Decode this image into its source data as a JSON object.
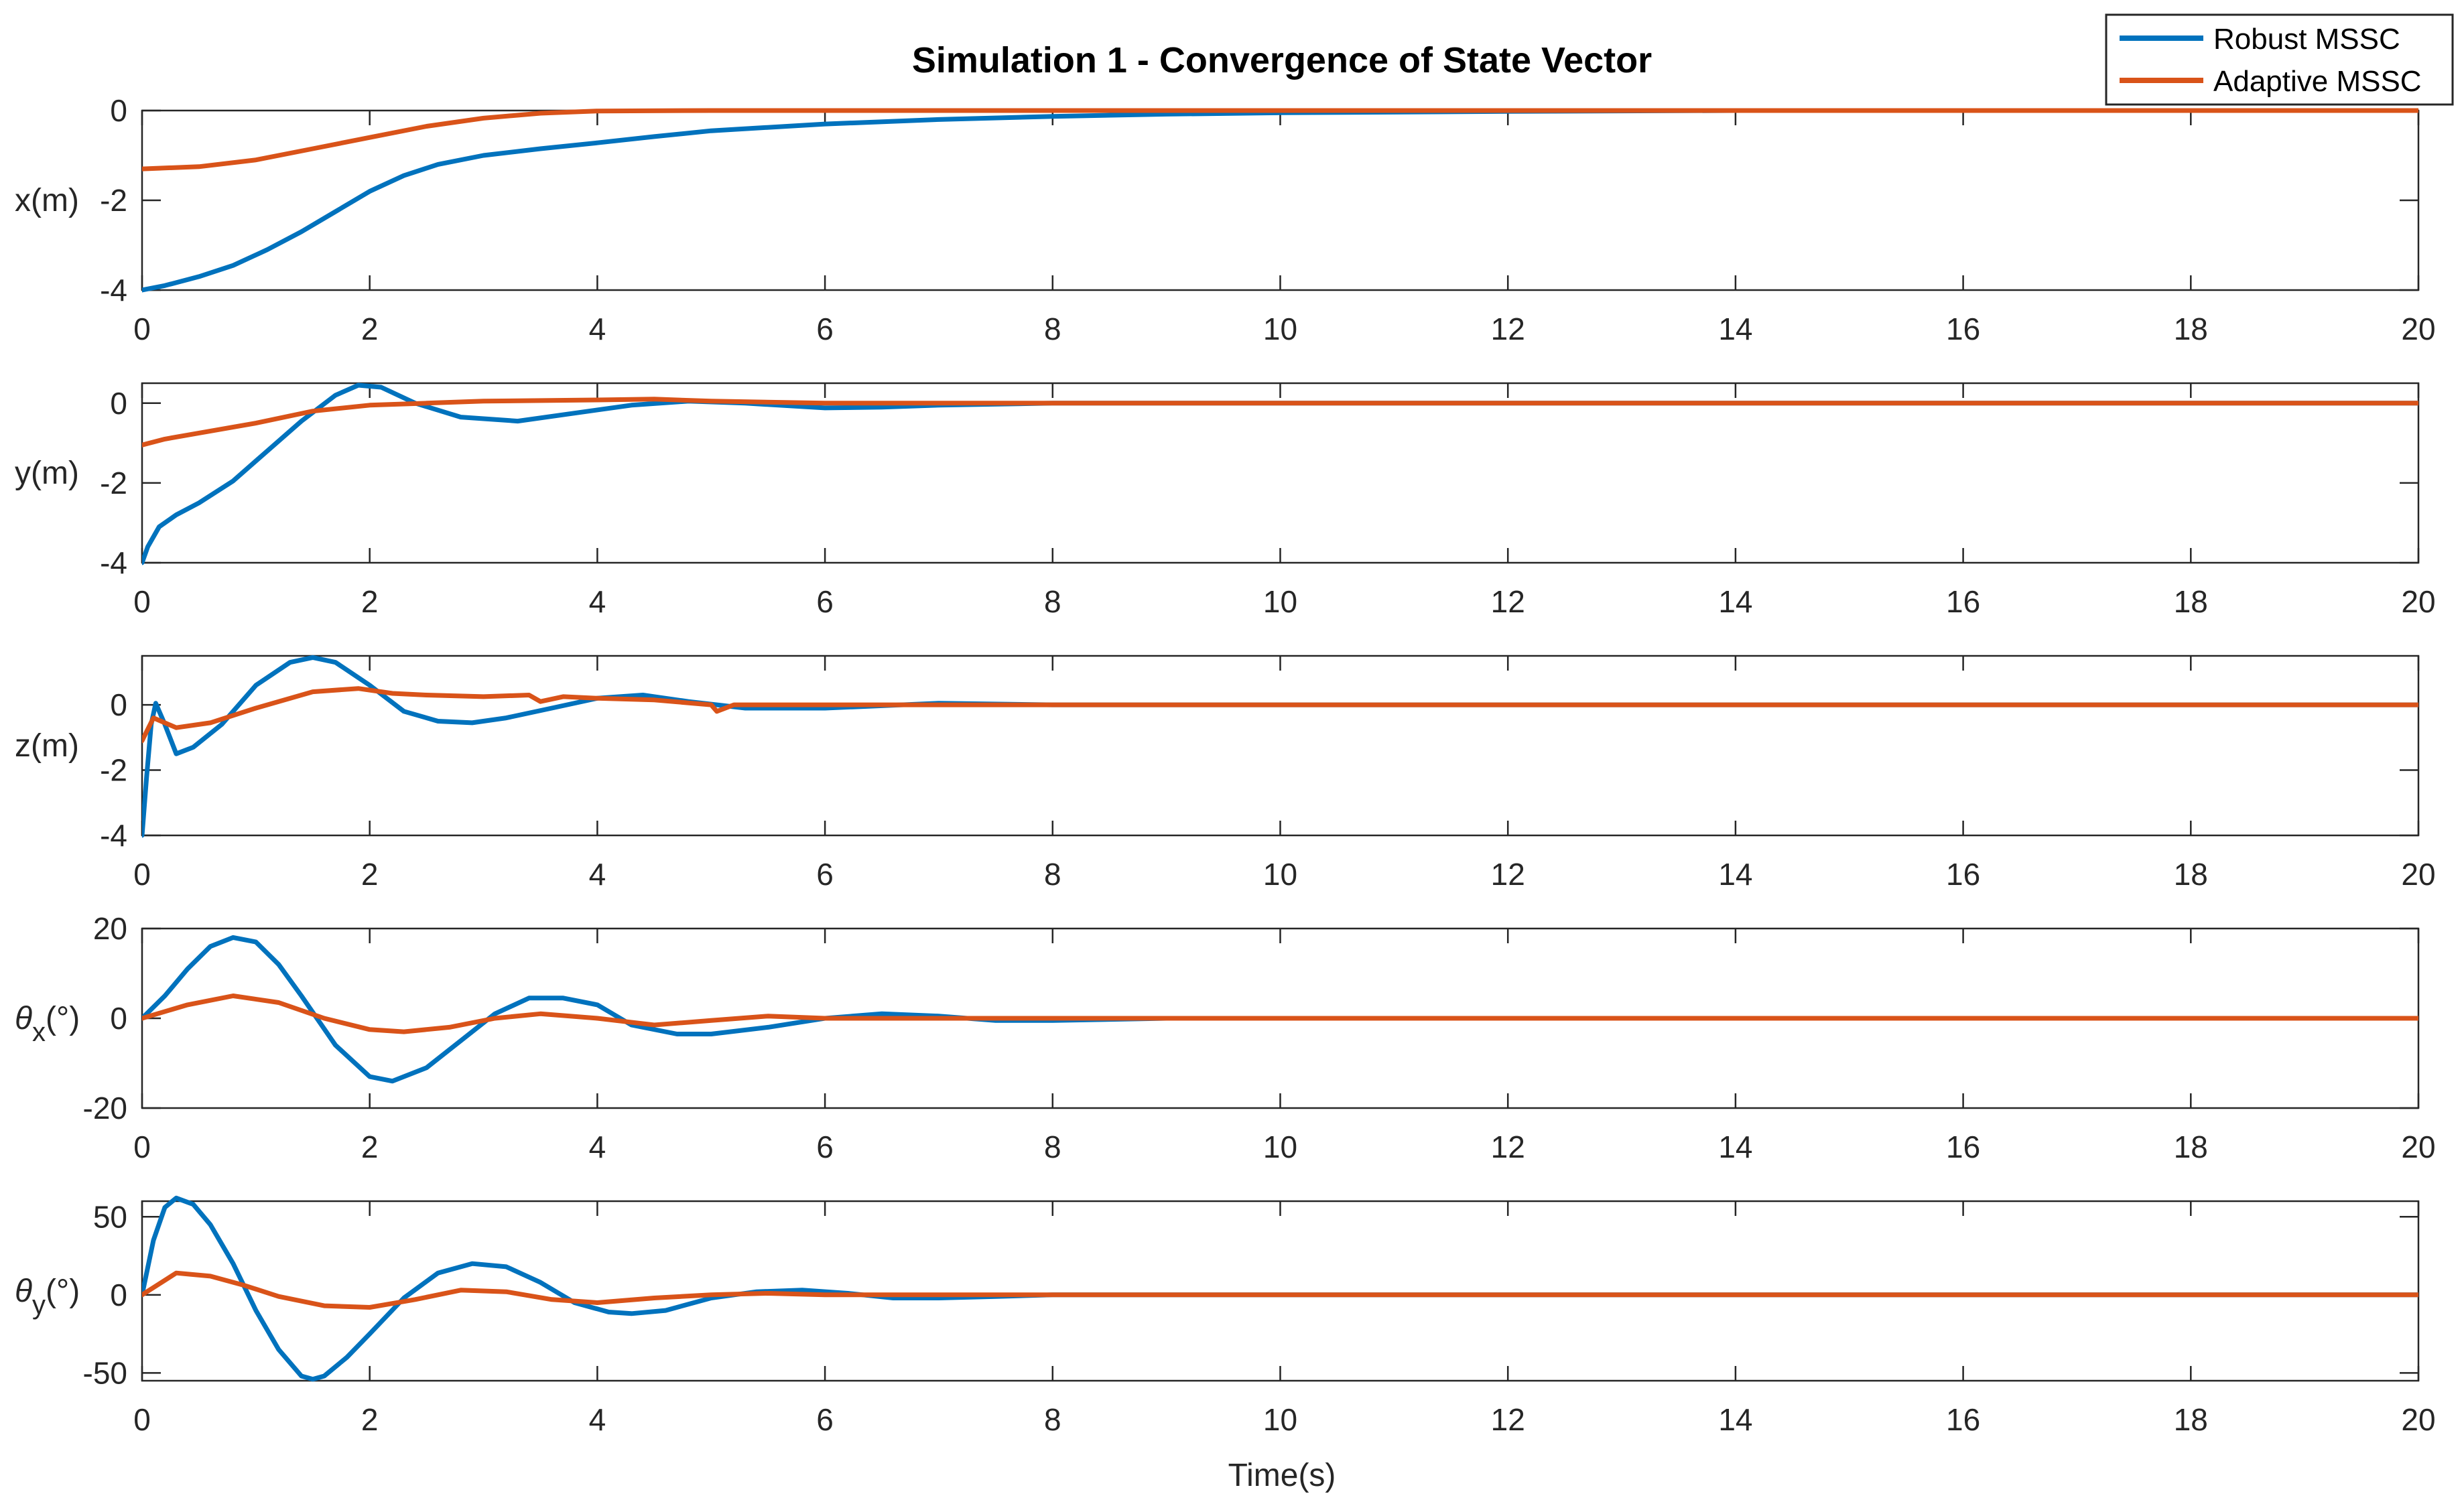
{
  "chart_data": {
    "type": "line",
    "title": "Simulation 1 - Convergence of State Vector",
    "xlabel": "Time(s)",
    "xlim": [
      0,
      20
    ],
    "xticks": [
      "0",
      "2",
      "4",
      "6",
      "8",
      "10",
      "12",
      "14",
      "16",
      "18",
      "20"
    ],
    "legend": {
      "position": "top-right",
      "entries": [
        {
          "name": "Robust MSSC",
          "color": "#0072BD"
        },
        {
          "name": "Adaptive MSSC",
          "color": "#D95319"
        }
      ]
    },
    "colors": {
      "robust": "#0072BD",
      "adaptive": "#D95319",
      "axis": "#262626"
    },
    "grid": false,
    "subplots": [
      {
        "id": "x",
        "ylabel_main": "x(m)",
        "ylabel_sub": "",
        "ylim": [
          -4,
          0
        ],
        "yticks": [
          "0",
          "-2",
          "-4"
        ],
        "ytick_values": [
          0,
          -2,
          -4
        ],
        "series": [
          {
            "name": "Robust MSSC",
            "x": [
              0,
              0.2,
              0.5,
              0.8,
              1.1,
              1.4,
              1.7,
              2.0,
              2.3,
              2.6,
              3.0,
              3.5,
              4.0,
              4.5,
              5.0,
              6.0,
              7.0,
              8.0,
              9.0,
              10.0,
              12.0,
              14.0,
              20.0
            ],
            "y": [
              -4.0,
              -3.9,
              -3.7,
              -3.45,
              -3.1,
              -2.7,
              -2.25,
              -1.8,
              -1.45,
              -1.2,
              -1.0,
              -0.85,
              -0.72,
              -0.58,
              -0.45,
              -0.3,
              -0.2,
              -0.13,
              -0.08,
              -0.05,
              -0.02,
              0,
              0
            ]
          },
          {
            "name": "Adaptive MSSC",
            "x": [
              0,
              0.5,
              1.0,
              1.5,
              2.0,
              2.5,
              3.0,
              3.5,
              4.0,
              5.0,
              6.0,
              20.0
            ],
            "y": [
              -1.3,
              -1.25,
              -1.1,
              -0.85,
              -0.6,
              -0.35,
              -0.17,
              -0.06,
              -0.01,
              0,
              0,
              0
            ]
          }
        ]
      },
      {
        "id": "y",
        "ylabel_main": "y(m)",
        "ylabel_sub": "",
        "ylim": [
          -4,
          0.5
        ],
        "yticks": [
          "0",
          "-2",
          "-4"
        ],
        "ytick_values": [
          0,
          -2,
          -4
        ],
        "series": [
          {
            "name": "Robust MSSC",
            "x": [
              0,
              0.05,
              0.15,
              0.3,
              0.5,
              0.8,
              1.1,
              1.4,
              1.7,
              1.9,
              2.1,
              2.4,
              2.8,
              3.3,
              3.8,
              4.3,
              4.8,
              5.3,
              6.0,
              6.5,
              7.0,
              8.0,
              10.0,
              20.0
            ],
            "y": [
              -4.0,
              -3.6,
              -3.1,
              -2.8,
              -2.5,
              -1.95,
              -1.2,
              -0.45,
              0.2,
              0.45,
              0.4,
              0.0,
              -0.35,
              -0.45,
              -0.25,
              -0.05,
              0.05,
              0.0,
              -0.12,
              -0.1,
              -0.05,
              0.0,
              0.0,
              0.0
            ]
          },
          {
            "name": "Adaptive MSSC",
            "x": [
              0,
              0.2,
              0.5,
              1.0,
              1.5,
              2.0,
              2.5,
              3.0,
              4.0,
              4.5,
              5.0,
              6.0,
              20.0
            ],
            "y": [
              -1.05,
              -0.9,
              -0.75,
              -0.5,
              -0.2,
              -0.05,
              0.0,
              0.05,
              0.08,
              0.1,
              0.05,
              0.0,
              0.0
            ]
          }
        ]
      },
      {
        "id": "z",
        "ylabel_main": "z(m)",
        "ylabel_sub": "",
        "ylim": [
          -4,
          1.5
        ],
        "yticks": [
          "0",
          "-2",
          "-4"
        ],
        "ytick_values": [
          0,
          -2,
          -4
        ],
        "series": [
          {
            "name": "Robust MSSC",
            "x": [
              0,
              0.04,
              0.08,
              0.12,
              0.2,
              0.3,
              0.45,
              0.7,
              1.0,
              1.3,
              1.5,
              1.7,
              2.0,
              2.3,
              2.6,
              2.9,
              3.2,
              3.6,
              4.0,
              4.4,
              4.8,
              5.3,
              6.0,
              7.0,
              8.0,
              20.0
            ],
            "y": [
              -4.0,
              -2.2,
              -0.6,
              0.05,
              -0.6,
              -1.5,
              -1.3,
              -0.6,
              0.6,
              1.3,
              1.45,
              1.3,
              0.6,
              -0.2,
              -0.5,
              -0.55,
              -0.4,
              -0.1,
              0.2,
              0.3,
              0.1,
              -0.1,
              -0.1,
              0.05,
              0.0,
              0.0
            ]
          },
          {
            "name": "Adaptive MSSC",
            "x": [
              0,
              0.1,
              0.3,
              0.6,
              1.0,
              1.5,
              1.9,
              2.2,
              2.5,
              3.0,
              3.4,
              3.5,
              3.7,
              4.0,
              4.5,
              5.0,
              5.05,
              5.2,
              6.0,
              20.0
            ],
            "y": [
              -1.1,
              -0.4,
              -0.7,
              -0.55,
              -0.1,
              0.4,
              0.5,
              0.35,
              0.3,
              0.25,
              0.3,
              0.1,
              0.25,
              0.2,
              0.15,
              0.0,
              -0.2,
              0.0,
              0.0,
              0.0
            ]
          }
        ]
      },
      {
        "id": "theta_x",
        "ylabel_main": "θ",
        "ylabel_sub": "x",
        "ylabel_tail": "(°)",
        "ylim": [
          -20,
          20
        ],
        "yticks": [
          "20",
          "0",
          "-20"
        ],
        "ytick_values": [
          20,
          0,
          -20
        ],
        "series": [
          {
            "name": "Robust MSSC",
            "x": [
              0,
              0.2,
              0.4,
              0.6,
              0.8,
              1.0,
              1.2,
              1.4,
              1.7,
              2.0,
              2.2,
              2.5,
              2.8,
              3.1,
              3.4,
              3.7,
              4.0,
              4.3,
              4.7,
              5.0,
              5.5,
              6.0,
              6.5,
              7.0,
              7.5,
              8.0,
              9.0,
              10.0,
              20.0
            ],
            "y": [
              0,
              5,
              11,
              16,
              18,
              17,
              12,
              5,
              -6,
              -13,
              -14,
              -11,
              -5,
              1,
              4.5,
              4.5,
              3,
              -1.5,
              -3.5,
              -3.5,
              -2,
              0,
              1,
              0.5,
              -0.5,
              -0.5,
              0,
              0,
              0
            ]
          },
          {
            "name": "Adaptive MSSC",
            "x": [
              0,
              0.4,
              0.8,
              1.2,
              1.6,
              2.0,
              2.3,
              2.7,
              3.1,
              3.5,
              4.0,
              4.5,
              5.0,
              5.5,
              6.0,
              7.0,
              8.0,
              20.0
            ],
            "y": [
              0,
              3,
              5,
              3.5,
              0,
              -2.5,
              -3,
              -2,
              0,
              1,
              0,
              -1.5,
              -0.5,
              0.5,
              0,
              0,
              0,
              0
            ]
          }
        ]
      },
      {
        "id": "theta_y",
        "ylabel_main": "θ",
        "ylabel_sub": "y",
        "ylabel_tail": "(°)",
        "ylim": [
          -55,
          60
        ],
        "yticks": [
          "50",
          "0",
          "-50"
        ],
        "ytick_values": [
          50,
          0,
          -50
        ],
        "series": [
          {
            "name": "Robust MSSC",
            "x": [
              0,
              0.1,
              0.2,
              0.3,
              0.45,
              0.6,
              0.8,
              1.0,
              1.2,
              1.4,
              1.5,
              1.6,
              1.8,
              2.0,
              2.3,
              2.6,
              2.9,
              3.2,
              3.5,
              3.8,
              4.1,
              4.3,
              4.6,
              5.0,
              5.4,
              5.8,
              6.2,
              6.6,
              7.0,
              7.5,
              8.0,
              9.0,
              20.0
            ],
            "y": [
              0,
              35,
              56,
              62,
              58,
              45,
              20,
              -10,
              -35,
              -52,
              -54,
              -52,
              -40,
              -25,
              -2,
              14,
              20,
              18,
              8,
              -5,
              -11,
              -12,
              -10,
              -2,
              2,
              3,
              1,
              -2,
              -2,
              -1,
              0,
              0,
              0
            ]
          },
          {
            "name": "Adaptive MSSC",
            "x": [
              0,
              0.3,
              0.6,
              0.9,
              1.2,
              1.6,
              2.0,
              2.4,
              2.8,
              3.2,
              3.6,
              4.0,
              4.5,
              5.0,
              5.5,
              6.0,
              7.0,
              8.0,
              20.0
            ],
            "y": [
              0,
              14,
              12,
              6,
              -1,
              -7,
              -8,
              -3,
              3,
              2,
              -3,
              -5,
              -2,
              0,
              1,
              0,
              0,
              0,
              0
            ]
          }
        ]
      }
    ]
  }
}
